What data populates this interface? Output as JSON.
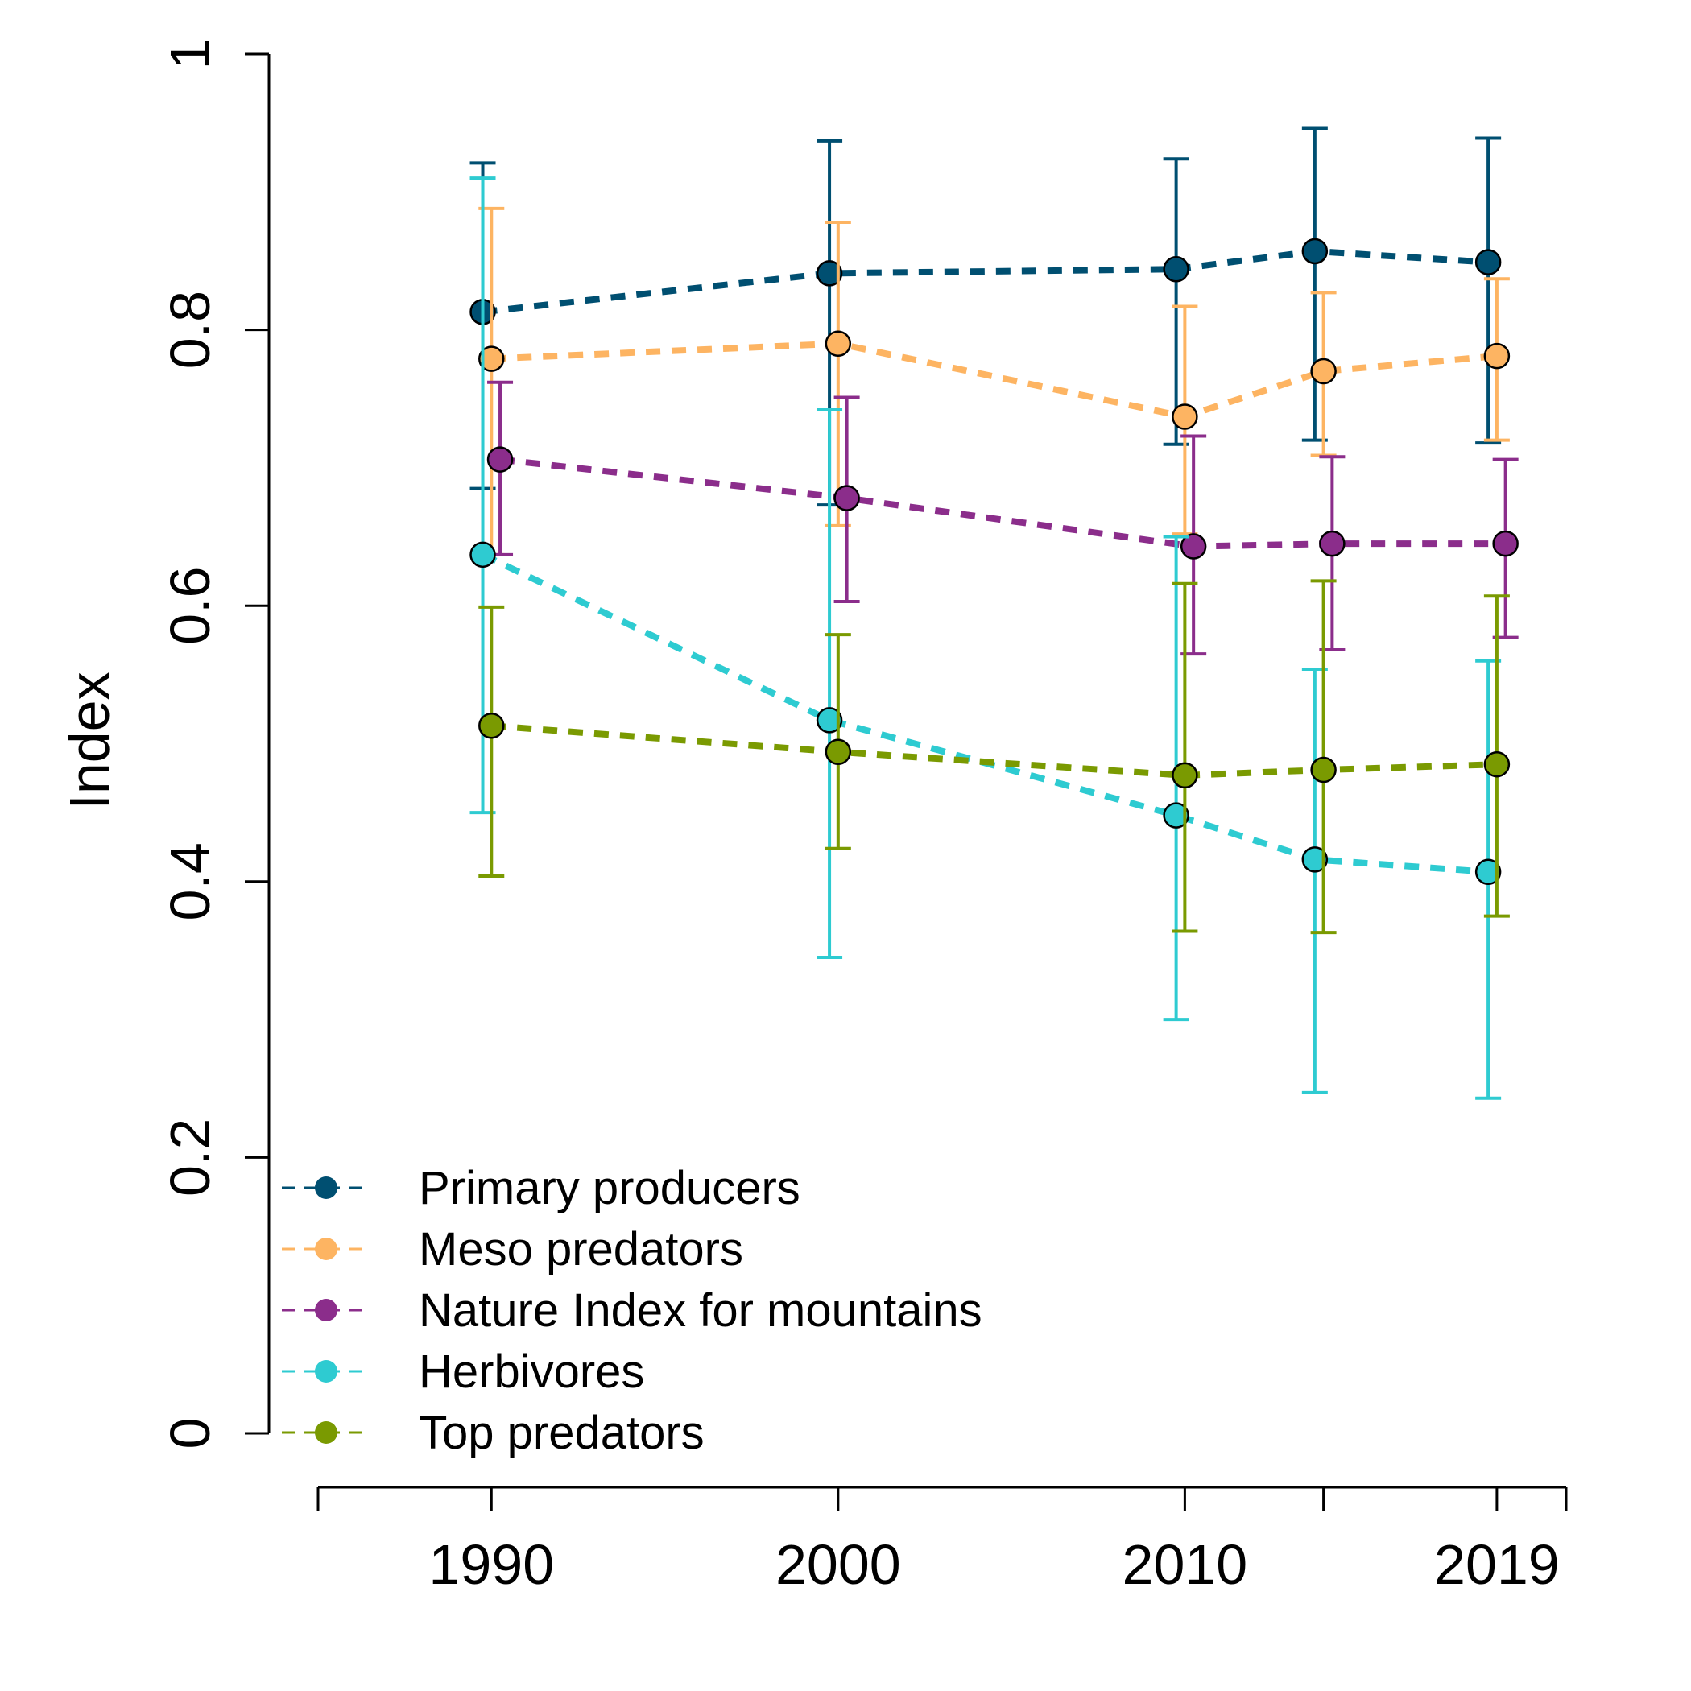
{
  "chart_data": {
    "type": "line",
    "ylabel": "Index",
    "xlabel": "",
    "ylim": [
      0,
      1
    ],
    "xlim": [
      1985,
      2021
    ],
    "y_ticks": [
      0,
      0.2,
      0.4,
      0.6,
      0.8,
      1
    ],
    "y_tick_labels": [
      "0",
      "0.2",
      "0.4",
      "0.6",
      "0.8",
      "1"
    ],
    "x_ticks": [
      1985,
      1990,
      2000,
      2010,
      2014,
      2019,
      2021
    ],
    "x_tick_labels": [
      "1990",
      "2000",
      "2010",
      "2019"
    ],
    "x_tick_label_values": [
      1990,
      2000,
      2010,
      2019
    ],
    "x": [
      1990,
      2000,
      2010,
      2014,
      2019
    ],
    "grid": false,
    "legend_position": "bottom-left",
    "series": [
      {
        "name": "Primary producers",
        "color": "#004f71",
        "x_offset": -0.25,
        "values": [
          0.813,
          0.841,
          0.844,
          0.857,
          0.849
        ],
        "lower": [
          0.685,
          0.673,
          0.717,
          0.72,
          0.718
        ],
        "upper": [
          0.921,
          0.937,
          0.924,
          0.946,
          0.939
        ]
      },
      {
        "name": "Meso predators",
        "color": "#fdb462",
        "x_offset": 0,
        "values": [
          0.779,
          0.79,
          0.737,
          0.77,
          0.781
        ],
        "lower": [
          0.637,
          0.658,
          0.652,
          0.709,
          0.72
        ],
        "upper": [
          0.888,
          0.878,
          0.817,
          0.827,
          0.837
        ]
      },
      {
        "name": "Nature Index for mountains",
        "color": "#8b2d8b",
        "x_offset": 0.25,
        "values": [
          0.706,
          0.678,
          0.643,
          0.645,
          0.645
        ],
        "lower": [
          0.637,
          0.603,
          0.565,
          0.568,
          0.577
        ],
        "upper": [
          0.762,
          0.751,
          0.723,
          0.708,
          0.706
        ]
      },
      {
        "name": "Herbivores",
        "color": "#2ecbd1",
        "x_offset": -0.25,
        "values": [
          0.637,
          0.517,
          0.448,
          0.416,
          0.407
        ],
        "lower": [
          0.45,
          0.345,
          0.3,
          0.247,
          0.243
        ],
        "upper": [
          0.91,
          0.742,
          0.65,
          0.554,
          0.56
        ]
      },
      {
        "name": "Top predators",
        "color": "#7a9a01",
        "x_offset": 0,
        "values": [
          0.513,
          0.494,
          0.477,
          0.481,
          0.485
        ],
        "lower": [
          0.404,
          0.424,
          0.364,
          0.363,
          0.375
        ],
        "upper": [
          0.599,
          0.579,
          0.616,
          0.618,
          0.607
        ]
      }
    ]
  }
}
